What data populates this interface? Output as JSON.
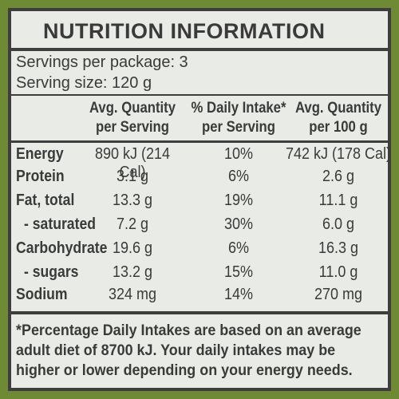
{
  "title": "NUTRITION INFORMATION",
  "servings_per_package": "Servings per package: 3",
  "serving_size": "Serving size: 120 g",
  "columns": {
    "col1_line1": "Avg. Quantity",
    "col1_line2": "per Serving",
    "col2_line1": "% Daily Intake*",
    "col2_line2": "per Serving",
    "col3_line1": "Avg. Quantity",
    "col3_line2": "per 100 g"
  },
  "rows": [
    {
      "label": "Energy",
      "per_serving": "890 kJ (214 Cal)",
      "daily_intake": "10%",
      "per_100g": "742 kJ (178 Cal)"
    },
    {
      "label": "Protein",
      "per_serving": "3.1 g",
      "daily_intake": "6%",
      "per_100g": "2.6 g"
    },
    {
      "label": "Fat, total",
      "per_serving": "13.3 g",
      "daily_intake": "19%",
      "per_100g": "11.1 g"
    },
    {
      "label": "- saturated",
      "per_serving": "7.2 g",
      "daily_intake": "30%",
      "per_100g": "6.0 g"
    },
    {
      "label": "Carbohydrate",
      "per_serving": "19.6 g",
      "daily_intake": "6%",
      "per_100g": "16.3 g"
    },
    {
      "label": "- sugars",
      "per_serving": "13.2 g",
      "daily_intake": "15%",
      "per_100g": "11.0 g"
    },
    {
      "label": "Sodium",
      "per_serving": "324 mg",
      "daily_intake": "14%",
      "per_100g": "270 mg"
    }
  ],
  "footnote": {
    "line1": "*Percentage Daily Intakes are based on an average",
    "line2": "adult diet of 8700 kJ. Your daily intakes may be",
    "line3": "higher or lower depending on your energy needs."
  },
  "colors": {
    "background": "#6f8a34",
    "label_bg": "#e9ece6",
    "text": "#3a3a3a"
  }
}
